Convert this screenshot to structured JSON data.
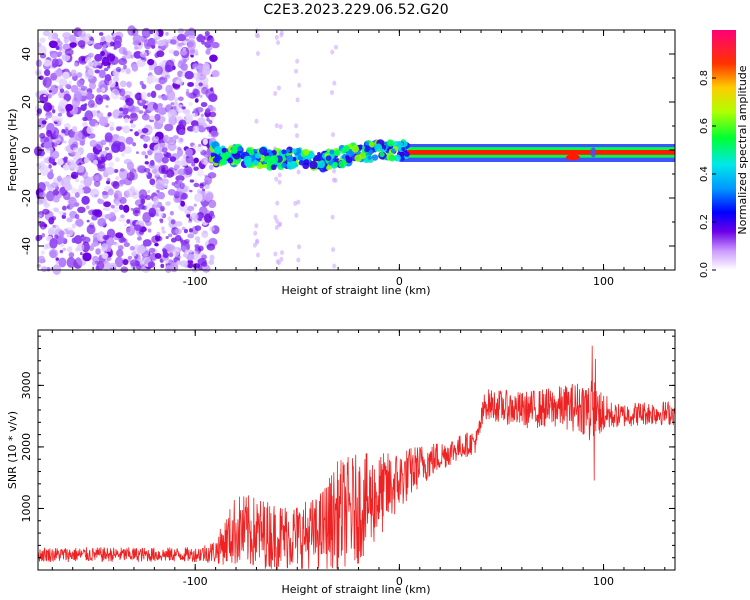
{
  "title": "C2E3.2023.229.06.52.G20",
  "chart_data": [
    {
      "type": "heatmap",
      "xlabel": "Height of straight line (km)",
      "ylabel": "Frequency (Hz)",
      "xlim": [
        -177,
        135
      ],
      "ylim": [
        -50,
        50
      ],
      "xticks": [
        -100,
        0,
        100
      ],
      "yticks": [
        -40,
        -20,
        0,
        20,
        40
      ],
      "colorbar": {
        "label": "Normalized spectral amplitude",
        "range": [
          0,
          1
        ],
        "ticks": [
          "0.0",
          "0.2",
          "0.4",
          "0.6",
          "0.8"
        ]
      },
      "description_trace": {
        "noise_region_x": [
          -177,
          -90
        ],
        "band_points": [
          [
            -90,
            -3
          ],
          [
            -80,
            -2
          ],
          [
            -70,
            -3
          ],
          [
            -60,
            -4
          ],
          [
            -50,
            -3
          ],
          [
            -40,
            -5
          ],
          [
            -30,
            -3
          ],
          [
            -20,
            -1
          ],
          [
            -10,
            0
          ],
          [
            0,
            0
          ],
          [
            10,
            -1
          ],
          [
            20,
            -1
          ],
          [
            40,
            -1
          ],
          [
            60,
            -1
          ],
          [
            80,
            -2
          ],
          [
            85,
            -3
          ],
          [
            90,
            -2
          ],
          [
            100,
            -1
          ],
          [
            135,
            -1
          ]
        ]
      }
    },
    {
      "type": "line",
      "xlabel": "Height of straight line (km)",
      "ylabel": "SNR (10 * v/v)",
      "xlim": [
        -177,
        135
      ],
      "ylim": [
        0,
        3900
      ],
      "xticks": [
        -100,
        0,
        100
      ],
      "yticks": [
        1000,
        2000,
        3000
      ],
      "color": "#ee2222",
      "envelope": [
        {
          "x": -177,
          "mean": 250,
          "amp": 120
        },
        {
          "x": -140,
          "mean": 250,
          "amp": 120
        },
        {
          "x": -100,
          "mean": 250,
          "amp": 120
        },
        {
          "x": -90,
          "mean": 300,
          "amp": 200
        },
        {
          "x": -80,
          "mean": 650,
          "amp": 600
        },
        {
          "x": -70,
          "mean": 600,
          "amp": 600
        },
        {
          "x": -60,
          "mean": 550,
          "amp": 550
        },
        {
          "x": -50,
          "mean": 550,
          "amp": 550
        },
        {
          "x": -40,
          "mean": 600,
          "amp": 600
        },
        {
          "x": -30,
          "mean": 900,
          "amp": 900
        },
        {
          "x": -20,
          "mean": 1000,
          "amp": 900
        },
        {
          "x": -10,
          "mean": 1200,
          "amp": 700
        },
        {
          "x": 0,
          "mean": 1450,
          "amp": 500
        },
        {
          "x": 10,
          "mean": 1700,
          "amp": 350
        },
        {
          "x": 20,
          "mean": 1850,
          "amp": 250
        },
        {
          "x": 30,
          "mean": 2000,
          "amp": 200
        },
        {
          "x": 38,
          "mean": 2100,
          "amp": 200
        },
        {
          "x": 42,
          "mean": 2700,
          "amp": 250
        },
        {
          "x": 60,
          "mean": 2600,
          "amp": 300
        },
        {
          "x": 80,
          "mean": 2650,
          "amp": 350
        },
        {
          "x": 90,
          "mean": 2650,
          "amp": 450
        },
        {
          "x": 95,
          "mean": 2600,
          "amp": 500
        },
        {
          "x": 105,
          "mean": 2500,
          "amp": 200
        },
        {
          "x": 120,
          "mean": 2550,
          "amp": 200
        },
        {
          "x": 135,
          "mean": 2550,
          "amp": 200
        }
      ]
    }
  ]
}
